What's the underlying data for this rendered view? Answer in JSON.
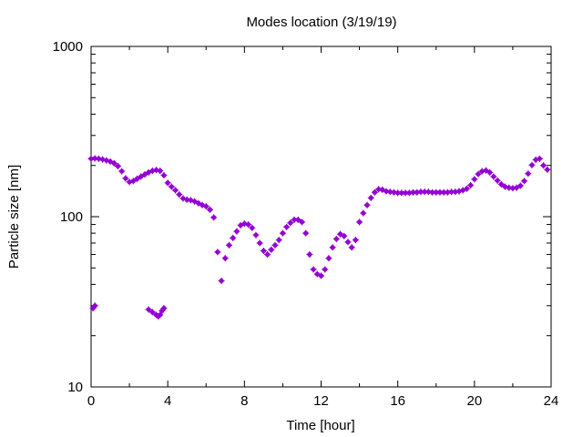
{
  "chart_data": {
    "type": "scatter",
    "title": "Modes location (3/19/19)",
    "xlabel": "Time [hour]",
    "ylabel": "Particle size [nm]",
    "xlim": [
      0,
      24
    ],
    "ylim": [
      10,
      1000
    ],
    "yscale": "log",
    "grid": false,
    "x_ticks": [
      0,
      4,
      8,
      12,
      16,
      20,
      24
    ],
    "x_tick_labels": [
      "0",
      "4",
      "8",
      "12",
      "16",
      "20",
      "24"
    ],
    "y_ticks": [
      10,
      100,
      1000
    ],
    "y_tick_labels": [
      "10",
      "100",
      "1000"
    ],
    "marker_color": "#9400d3",
    "series": [
      {
        "points": [
          [
            0.0,
            219
          ],
          [
            0.2,
            220
          ],
          [
            0.4,
            219
          ],
          [
            0.6,
            217
          ],
          [
            0.8,
            214
          ],
          [
            1.0,
            211
          ],
          [
            1.2,
            206
          ],
          [
            1.4,
            198
          ],
          [
            1.6,
            185
          ],
          [
            1.8,
            168
          ],
          [
            2.0,
            160
          ],
          [
            2.2,
            162
          ],
          [
            2.4,
            167
          ],
          [
            2.6,
            172
          ],
          [
            2.8,
            177
          ],
          [
            3.0,
            182
          ],
          [
            3.2,
            186
          ],
          [
            3.4,
            188
          ],
          [
            3.6,
            186
          ],
          [
            3.8,
            175
          ],
          [
            4.0,
            158
          ],
          [
            4.2,
            150
          ],
          [
            4.4,
            143
          ],
          [
            4.6,
            135
          ],
          [
            4.8,
            128
          ],
          [
            5.0,
            126
          ],
          [
            5.2,
            125
          ],
          [
            5.4,
            123
          ],
          [
            5.6,
            120
          ],
          [
            5.8,
            117
          ],
          [
            6.0,
            115
          ],
          [
            6.2,
            110
          ],
          [
            6.4,
            99
          ],
          [
            6.6,
            62
          ],
          [
            6.8,
            42
          ],
          [
            7.0,
            57
          ],
          [
            7.2,
            68
          ],
          [
            7.4,
            75
          ],
          [
            7.6,
            82
          ],
          [
            7.8,
            89
          ],
          [
            8.0,
            91
          ],
          [
            8.2,
            90
          ],
          [
            8.4,
            86
          ],
          [
            8.6,
            78
          ],
          [
            8.8,
            70
          ],
          [
            9.0,
            63
          ],
          [
            9.2,
            60
          ],
          [
            9.4,
            64
          ],
          [
            9.6,
            68
          ],
          [
            9.8,
            73
          ],
          [
            10.0,
            80
          ],
          [
            10.2,
            87
          ],
          [
            10.4,
            92
          ],
          [
            10.6,
            96
          ],
          [
            10.8,
            96
          ],
          [
            11.0,
            93
          ],
          [
            11.2,
            80
          ],
          [
            11.4,
            60
          ],
          [
            11.6,
            49
          ],
          [
            11.8,
            46
          ],
          [
            12.0,
            45
          ],
          [
            12.2,
            49
          ],
          [
            12.4,
            57
          ],
          [
            12.6,
            66
          ],
          [
            12.8,
            74
          ],
          [
            13.0,
            79
          ],
          [
            13.2,
            77
          ],
          [
            13.4,
            71
          ],
          [
            13.6,
            66
          ],
          [
            13.8,
            73
          ],
          [
            14.0,
            93
          ],
          [
            14.2,
            105
          ],
          [
            14.4,
            117
          ],
          [
            14.6,
            129
          ],
          [
            14.8,
            139
          ],
          [
            15.0,
            145
          ],
          [
            15.2,
            144
          ],
          [
            15.4,
            141
          ],
          [
            15.6,
            140
          ],
          [
            15.8,
            139
          ],
          [
            16.0,
            138
          ],
          [
            16.2,
            138
          ],
          [
            16.4,
            138
          ],
          [
            16.6,
            138
          ],
          [
            16.8,
            139
          ],
          [
            17.0,
            139
          ],
          [
            17.2,
            140
          ],
          [
            17.4,
            140
          ],
          [
            17.6,
            140
          ],
          [
            17.8,
            139
          ],
          [
            18.0,
            139
          ],
          [
            18.2,
            139
          ],
          [
            18.4,
            139
          ],
          [
            18.6,
            139
          ],
          [
            18.8,
            140
          ],
          [
            19.0,
            140
          ],
          [
            19.2,
            141
          ],
          [
            19.4,
            143
          ],
          [
            19.6,
            146
          ],
          [
            19.8,
            153
          ],
          [
            20.0,
            166
          ],
          [
            20.2,
            178
          ],
          [
            20.4,
            185
          ],
          [
            20.6,
            187
          ],
          [
            20.8,
            182
          ],
          [
            21.0,
            172
          ],
          [
            21.2,
            163
          ],
          [
            21.4,
            155
          ],
          [
            21.6,
            150
          ],
          [
            21.8,
            148
          ],
          [
            22.0,
            147
          ],
          [
            22.2,
            148
          ],
          [
            22.4,
            152
          ],
          [
            22.6,
            162
          ],
          [
            22.8,
            179
          ],
          [
            23.0,
            201
          ],
          [
            23.2,
            216
          ],
          [
            23.4,
            219
          ],
          [
            23.6,
            200
          ],
          [
            23.8,
            189
          ],
          [
            0.1,
            29
          ],
          [
            0.2,
            30
          ],
          [
            3.0,
            28.5
          ],
          [
            3.2,
            27.5
          ],
          [
            3.4,
            26.5
          ],
          [
            3.5,
            26.0
          ],
          [
            3.6,
            26.5
          ],
          [
            3.7,
            28.0
          ],
          [
            3.8,
            29.0
          ]
        ]
      }
    ]
  }
}
